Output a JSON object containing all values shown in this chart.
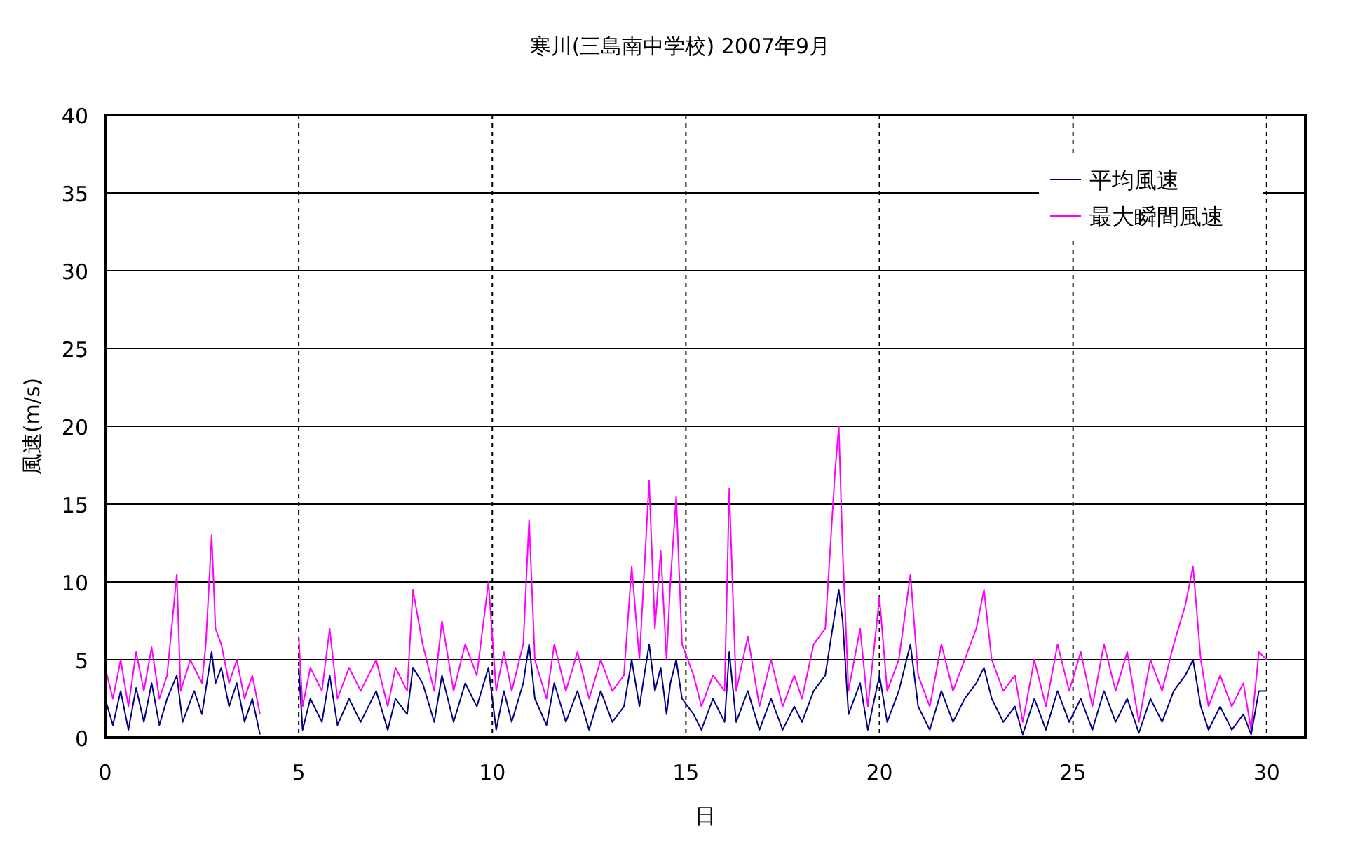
{
  "chart_data": {
    "type": "line",
    "title": "寒川(三島南中学校)  2007年9月",
    "xlabel": "日",
    "ylabel": "風速(m/s)",
    "xlim": [
      0,
      31
    ],
    "xticks": [
      0,
      5,
      10,
      15,
      20,
      25,
      30
    ],
    "ylim": [
      0,
      40
    ],
    "yticks": [
      0,
      5,
      10,
      15,
      20,
      25,
      30,
      35,
      40
    ],
    "grid": true,
    "legend": "top right",
    "series": [
      {
        "name": "平均風速",
        "color": "#000080",
        "x": [
          0,
          0.2,
          0.4,
          0.6,
          0.8,
          1.0,
          1.2,
          1.4,
          1.6,
          1.85,
          2.0,
          2.3,
          2.5,
          2.75,
          2.85,
          3.0,
          3.2,
          3.4,
          3.6,
          3.8,
          4.0,
          4.5,
          5.0,
          5.1,
          5.3,
          5.6,
          5.8,
          6.0,
          6.3,
          6.6,
          7.0,
          7.3,
          7.5,
          7.8,
          7.95,
          8.2,
          8.5,
          8.7,
          9.0,
          9.3,
          9.6,
          9.9,
          10.1,
          10.3,
          10.5,
          10.8,
          10.95,
          11.1,
          11.4,
          11.6,
          11.9,
          12.2,
          12.5,
          12.8,
          13.1,
          13.4,
          13.6,
          13.8,
          14.05,
          14.2,
          14.35,
          14.5,
          14.6,
          14.75,
          14.9,
          15.2,
          15.4,
          15.7,
          16.0,
          16.12,
          16.3,
          16.6,
          16.9,
          17.2,
          17.5,
          17.8,
          18.0,
          18.3,
          18.6,
          18.85,
          18.95,
          19.05,
          19.2,
          19.5,
          19.7,
          20.0,
          20.2,
          20.5,
          20.8,
          21.0,
          21.3,
          21.6,
          21.9,
          22.2,
          22.5,
          22.7,
          22.9,
          23.2,
          23.5,
          23.7,
          24.0,
          24.3,
          24.6,
          24.9,
          25.2,
          25.5,
          25.8,
          26.1,
          26.4,
          26.7,
          27.0,
          27.3,
          27.6,
          27.9,
          28.1,
          28.3,
          28.5,
          28.8,
          29.1,
          29.4,
          29.6,
          29.8,
          30.0
        ],
        "values": [
          2.5,
          0.8,
          3,
          0.5,
          3.2,
          1,
          3.5,
          0.8,
          2.5,
          4,
          1,
          3,
          1.5,
          5.5,
          3.5,
          4.5,
          2,
          3.5,
          1,
          2.5,
          0.2,
          null,
          4.5,
          0.5,
          2.5,
          1,
          4,
          0.8,
          2.5,
          1,
          3,
          0.5,
          2.5,
          1.5,
          4.5,
          3.5,
          1,
          4,
          1,
          3.5,
          2,
          4.5,
          0.5,
          3,
          1,
          3.5,
          6,
          2.5,
          0.8,
          3.5,
          1,
          3,
          0.5,
          3,
          1,
          2,
          5,
          2,
          6,
          3,
          4.5,
          1.5,
          3.5,
          5,
          2.5,
          1.5,
          0.5,
          2.5,
          1,
          5.5,
          1,
          3,
          0.5,
          2.5,
          0.5,
          2,
          1,
          3,
          4,
          8,
          9.5,
          7.5,
          1.5,
          3.5,
          0.5,
          4,
          1,
          3,
          6,
          2,
          0.5,
          3,
          1,
          2.5,
          3.5,
          4.5,
          2.5,
          1,
          2,
          0.2,
          2.5,
          0.5,
          3,
          1,
          2.5,
          0.5,
          3,
          1,
          2.5,
          0.3,
          2.5,
          1,
          3,
          4,
          5,
          2,
          0.5,
          2,
          0.5,
          1.5,
          0.2,
          3,
          3
        ]
      },
      {
        "name": "最大瞬間風速",
        "color": "#ff00ff",
        "x": [
          0,
          0.2,
          0.4,
          0.6,
          0.8,
          1.0,
          1.2,
          1.4,
          1.6,
          1.85,
          1.95,
          2.2,
          2.5,
          2.6,
          2.75,
          2.85,
          3.0,
          3.2,
          3.4,
          3.6,
          3.8,
          4.0,
          4.5,
          5.0,
          5.1,
          5.3,
          5.6,
          5.8,
          6.0,
          6.3,
          6.6,
          7.0,
          7.3,
          7.5,
          7.8,
          7.95,
          8.2,
          8.5,
          8.7,
          9.0,
          9.3,
          9.6,
          9.9,
          10.1,
          10.3,
          10.5,
          10.8,
          10.95,
          11.1,
          11.4,
          11.6,
          11.9,
          12.2,
          12.5,
          12.8,
          13.1,
          13.4,
          13.6,
          13.8,
          14.05,
          14.2,
          14.35,
          14.5,
          14.6,
          14.75,
          14.9,
          15.2,
          15.4,
          15.7,
          16.0,
          16.12,
          16.3,
          16.6,
          16.9,
          17.2,
          17.5,
          17.8,
          18.0,
          18.3,
          18.6,
          18.85,
          18.95,
          19.05,
          19.2,
          19.5,
          19.7,
          20.0,
          20.2,
          20.5,
          20.8,
          21.0,
          21.3,
          21.6,
          21.9,
          22.2,
          22.5,
          22.7,
          22.9,
          23.2,
          23.5,
          23.7,
          24.0,
          24.3,
          24.6,
          24.9,
          25.2,
          25.5,
          25.8,
          26.1,
          26.4,
          26.7,
          27.0,
          27.3,
          27.6,
          27.9,
          28.1,
          28.3,
          28.5,
          28.8,
          29.1,
          29.4,
          29.6,
          29.8,
          30.0
        ],
        "values": [
          4.5,
          2.5,
          5,
          2,
          5.5,
          3,
          5.8,
          2.5,
          4,
          10.5,
          3,
          5,
          3.5,
          6,
          13,
          7,
          6,
          3.5,
          5,
          2.5,
          4,
          1.5,
          null,
          6.5,
          2,
          4.5,
          3,
          7,
          2.5,
          4.5,
          3,
          5,
          2,
          4.5,
          3,
          9.5,
          6,
          3,
          7.5,
          3,
          6,
          4,
          10,
          3,
          5.5,
          3,
          6,
          14,
          5,
          2.5,
          6,
          3,
          5.5,
          2.5,
          5,
          3,
          4,
          11,
          5,
          16.5,
          7,
          12,
          5,
          10,
          15.5,
          6,
          4,
          2,
          4,
          3,
          16,
          3,
          6.5,
          2,
          5,
          2,
          4,
          2.5,
          6,
          7,
          17,
          20,
          12,
          3,
          7,
          2,
          9,
          3,
          5,
          10.5,
          4,
          2,
          6,
          3,
          5,
          7,
          9.5,
          5,
          3,
          4,
          1,
          5,
          2,
          6,
          3,
          5.5,
          2,
          6,
          3,
          5.5,
          1,
          5,
          3,
          6,
          8.5,
          11,
          5,
          2,
          4,
          2,
          3.5,
          0.5,
          5.5,
          5
        ]
      }
    ]
  }
}
